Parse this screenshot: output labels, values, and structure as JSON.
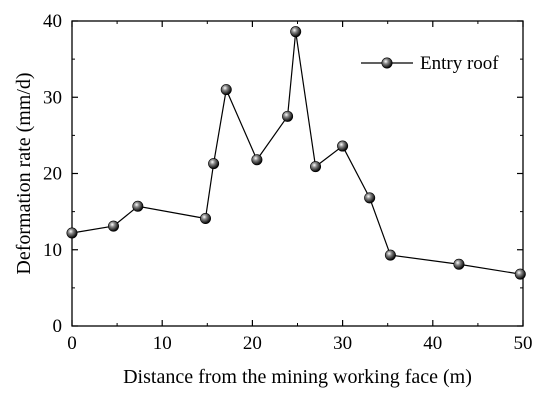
{
  "chart_data": {
    "type": "line",
    "title": "",
    "xlabel": "Distance from the mining working face (m)",
    "ylabel": "Deformation rate (mm/d)",
    "xlim": [
      0,
      50
    ],
    "ylim": [
      0,
      40
    ],
    "xticks": [
      0,
      10,
      20,
      30,
      40,
      50
    ],
    "yticks": [
      0,
      10,
      20,
      30,
      40
    ],
    "grid": false,
    "legend_position": "top-right",
    "series": [
      {
        "name": "Entry roof",
        "color": "#000000",
        "marker": "sphere",
        "x": [
          0,
          4.6,
          7.3,
          14.8,
          15.7,
          17.1,
          20.5,
          23.9,
          24.8,
          27.0,
          30.0,
          33.0,
          35.3,
          42.9,
          49.7
        ],
        "y": [
          12.2,
          13.1,
          15.7,
          14.1,
          21.3,
          31.0,
          21.8,
          27.5,
          38.6,
          20.9,
          23.6,
          16.8,
          9.3,
          8.1,
          6.8
        ]
      }
    ]
  }
}
